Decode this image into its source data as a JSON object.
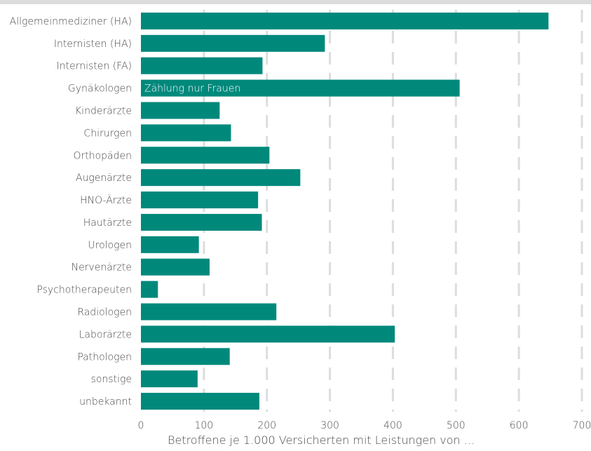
{
  "chart_data": {
    "type": "bar",
    "orientation": "horizontal",
    "categories": [
      "Allgemeinmediziner (HA)",
      "Internisten (HA)",
      "Internisten (FA)",
      "Gynäkologen",
      "Kinderärzte",
      "Chirurgen",
      "Orthopäden",
      "Augenärzte",
      "HNO-Ärzte",
      "Hautärzte",
      "Urologen",
      "Nervenärzte",
      "Psychotherapeuten",
      "Radiologen",
      "Laborärzte",
      "Pathologen",
      "sonstige",
      "unbekannt"
    ],
    "values": [
      647,
      292,
      193,
      506,
      125,
      143,
      204,
      253,
      186,
      192,
      92,
      109,
      27,
      215,
      403,
      141,
      90,
      188
    ],
    "xlabel": "Betroffene je 1.000 Versicherten mit Leistungen von ...",
    "ylabel": "",
    "xlim": [
      0,
      700
    ],
    "xticks": [
      0,
      100,
      200,
      300,
      400,
      500,
      600,
      700
    ],
    "grid": "vertical-dashed",
    "annotations": [
      {
        "category": "Gynäkologen",
        "text": "Zählung nur Frauen"
      }
    ],
    "colors": {
      "bar": "#00897b",
      "grid": "#dddddd",
      "top_band": "#dcdcdc"
    }
  }
}
